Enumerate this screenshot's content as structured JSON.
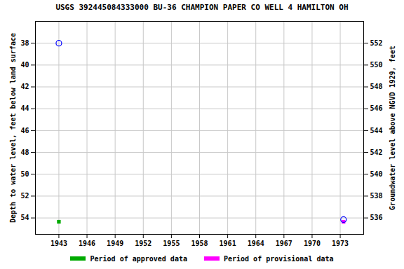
{
  "chart_data": {
    "type": "scatter",
    "title": "USGS 392445084333000 BU-36 CHAMPION PAPER CO WELL 4 HAMILTON OH",
    "ylabel": "Depth to water level, feet below land surface",
    "y2label": "Groundwater level above NGVD 1929, feet",
    "xlim": [
      1940.5,
      1975.5
    ],
    "xticks": [
      1943,
      1946,
      1949,
      1952,
      1955,
      1958,
      1961,
      1964,
      1967,
      1970,
      1973
    ],
    "ylim": [
      55.5,
      36.0
    ],
    "yticks": [
      38,
      40,
      42,
      44,
      46,
      48,
      50,
      52,
      54
    ],
    "y2lim": [
      534.5,
      554
    ],
    "y2ticks": [
      552,
      550,
      548,
      546,
      544,
      542,
      540,
      538,
      536
    ],
    "grid": true,
    "legend": "bottom",
    "series": [
      {
        "name": "Period of approved data",
        "color": "#00aa00",
        "marker": "square",
        "x": [
          1943.0
        ],
        "values": [
          54.35
        ]
      },
      {
        "name": "Period of provisional data",
        "color": "#ff00ff",
        "marker": "square",
        "x": [
          1973.35
        ],
        "values": [
          54.35
        ]
      },
      {
        "color": "#0000ff",
        "marker": "open_circle",
        "x": [
          1943.0,
          1973.35
        ],
        "values": [
          38.0,
          54.15
        ]
      }
    ]
  }
}
